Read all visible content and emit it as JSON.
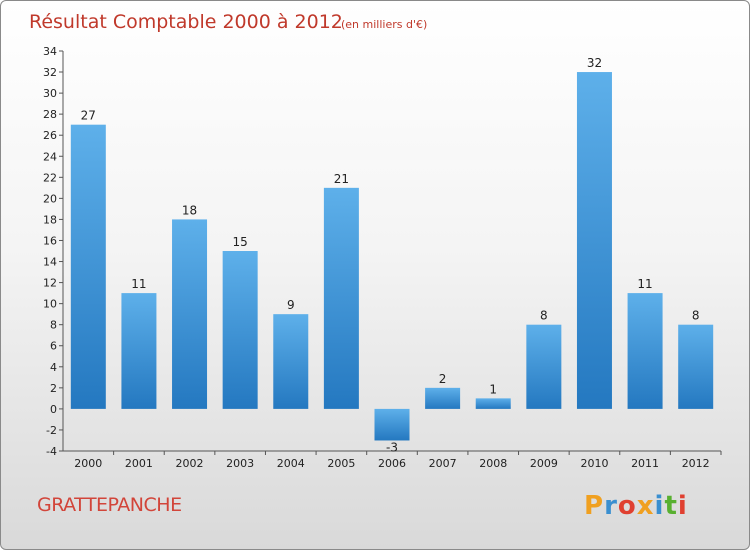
{
  "chart_data": {
    "type": "bar",
    "title": "Résultat Comptable 2000 à 2012",
    "subtitle": "(en milliers d'€)",
    "categories": [
      "2000",
      "2001",
      "2002",
      "2003",
      "2004",
      "2005",
      "2006",
      "2007",
      "2008",
      "2009",
      "2010",
      "2011",
      "2012"
    ],
    "values": [
      27,
      11,
      18,
      15,
      9,
      21,
      -3,
      2,
      1,
      8,
      32,
      11,
      8
    ],
    "ylim": [
      -4,
      34
    ],
    "yticks": [
      -4,
      -2,
      0,
      2,
      4,
      6,
      8,
      10,
      12,
      14,
      16,
      18,
      20,
      22,
      24,
      26,
      28,
      30,
      32,
      34
    ],
    "grid": false,
    "bar_color": "#3d8fd6"
  },
  "place_name": "GRATTEPANCHE",
  "logo": {
    "text": "Proxiti",
    "letters": [
      "P",
      "r",
      "o",
      "x",
      "i",
      "t",
      "i"
    ],
    "colors": [
      "#f0a020",
      "#3a8fd0",
      "#e04030",
      "#f0a020",
      "#3a8fd0",
      "#58b030",
      "#e04030"
    ]
  }
}
